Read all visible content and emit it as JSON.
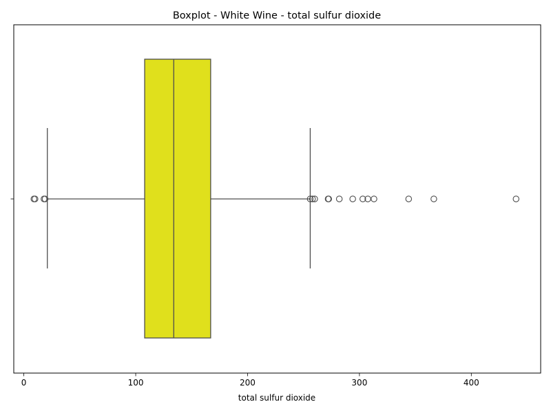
{
  "chart_data": {
    "type": "boxplot",
    "orientation": "horizontal",
    "title": "Boxplot - White Wine - total sulfur dioxide",
    "xlabel": "total sulfur dioxide",
    "ylabel": "",
    "xlim": [
      -9,
      462
    ],
    "xticks": [
      0,
      100,
      200,
      300,
      400
    ],
    "grid": false,
    "box": {
      "whisker_low": 21,
      "q1": 108,
      "median": 134,
      "q3": 167,
      "whisker_high": 256,
      "fill_color": "#e0e01c",
      "edge_color": "#4d4d4d"
    },
    "outliers": [
      9,
      10,
      18,
      19,
      256,
      258,
      260,
      272,
      272.5,
      282,
      294,
      303,
      307.5,
      313,
      344,
      366.5,
      440
    ]
  }
}
